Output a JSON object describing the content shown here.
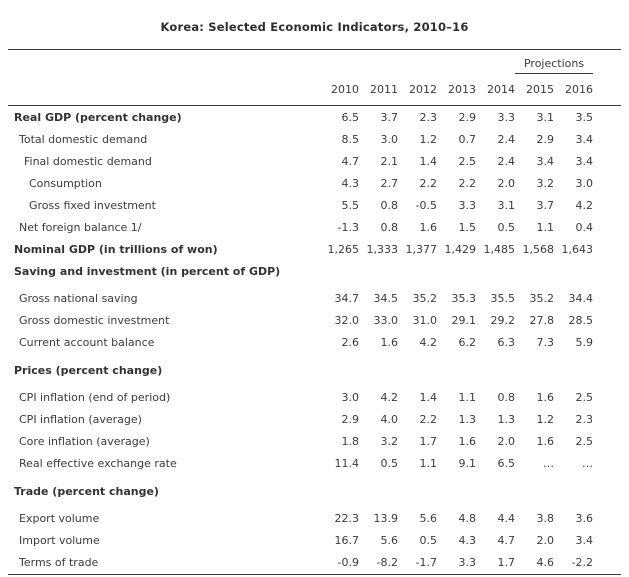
{
  "title": "Korea: Selected Economic Indicators, 2010–16",
  "table": {
    "projections_label": "Projections",
    "years": [
      "2010",
      "2011",
      "2012",
      "2013",
      "2014",
      "2015",
      "2016"
    ],
    "projection_years": [
      "2015",
      "2016"
    ],
    "rows": [
      {
        "label": "Real GDP (percent change)",
        "indent": 0,
        "bold": true,
        "gap": false,
        "values": [
          "6.5",
          "3.7",
          "2.3",
          "2.9",
          "3.3",
          "3.1",
          "3.5"
        ]
      },
      {
        "label": "Total domestic demand",
        "indent": 1,
        "bold": false,
        "gap": false,
        "values": [
          "8.5",
          "3.0",
          "1.2",
          "0.7",
          "2.4",
          "2.9",
          "3.4"
        ]
      },
      {
        "label": "Final domestic demand",
        "indent": 2,
        "bold": false,
        "gap": false,
        "values": [
          "4.7",
          "2.1",
          "1.4",
          "2.5",
          "2.4",
          "3.4",
          "3.4"
        ]
      },
      {
        "label": "Consumption",
        "indent": 3,
        "bold": false,
        "gap": false,
        "values": [
          "4.3",
          "2.7",
          "2.2",
          "2.2",
          "2.0",
          "3.2",
          "3.0"
        ]
      },
      {
        "label": "Gross fixed investment",
        "indent": 3,
        "bold": false,
        "gap": false,
        "values": [
          "5.5",
          "0.8",
          "-0.5",
          "3.3",
          "3.1",
          "3.7",
          "4.2"
        ]
      },
      {
        "label": "Net foreign balance 1/",
        "indent": 1,
        "bold": false,
        "gap": false,
        "values": [
          "-1.3",
          "0.8",
          "1.6",
          "1.5",
          "0.5",
          "1.1",
          "0.4"
        ]
      },
      {
        "label": "Nominal GDP (in trillions of won)",
        "indent": 0,
        "bold": true,
        "gap": false,
        "values": [
          "1,265",
          "1,333",
          "1,377",
          "1,429",
          "1,485",
          "1,568",
          "1,643"
        ]
      },
      {
        "label": "Saving and investment (in percent of GDP)",
        "indent": 0,
        "bold": true,
        "gap": false,
        "values": []
      },
      {
        "label": "Gross national saving",
        "indent": 1,
        "bold": false,
        "gap": true,
        "values": [
          "34.7",
          "34.5",
          "35.2",
          "35.3",
          "35.5",
          "35.2",
          "34.4"
        ]
      },
      {
        "label": "Gross domestic investment",
        "indent": 1,
        "bold": false,
        "gap": false,
        "values": [
          "32.0",
          "33.0",
          "31.0",
          "29.1",
          "29.2",
          "27.8",
          "28.5"
        ]
      },
      {
        "label": "Current account balance",
        "indent": 1,
        "bold": false,
        "gap": false,
        "values": [
          "2.6",
          "1.6",
          "4.2",
          "6.2",
          "6.3",
          "7.3",
          "5.9"
        ]
      },
      {
        "label": "Prices (percent change)",
        "indent": 0,
        "bold": true,
        "gap": true,
        "values": []
      },
      {
        "label": "CPI inflation (end of period)",
        "indent": 1,
        "bold": false,
        "gap": true,
        "values": [
          "3.0",
          "4.2",
          "1.4",
          "1.1",
          "0.8",
          "1.6",
          "2.5"
        ]
      },
      {
        "label": "CPI inflation (average)",
        "indent": 1,
        "bold": false,
        "gap": false,
        "values": [
          "2.9",
          "4.0",
          "2.2",
          "1.3",
          "1.3",
          "1.2",
          "2.3"
        ]
      },
      {
        "label": "Core inflation (average)",
        "indent": 1,
        "bold": false,
        "gap": false,
        "values": [
          "1.8",
          "3.2",
          "1.7",
          "1.6",
          "2.0",
          "1.6",
          "2.5"
        ]
      },
      {
        "label": "Real effective exchange rate",
        "indent": 1,
        "bold": false,
        "gap": false,
        "values": [
          "11.4",
          "0.5",
          "1.1",
          "9.1",
          "6.5",
          "…",
          "…"
        ]
      },
      {
        "label": "Trade (percent change)",
        "indent": 0,
        "bold": true,
        "gap": true,
        "values": []
      },
      {
        "label": "Export volume",
        "indent": 1,
        "bold": false,
        "gap": true,
        "values": [
          "22.3",
          "13.9",
          "5.6",
          "4.8",
          "4.4",
          "3.8",
          "3.6"
        ]
      },
      {
        "label": "Import volume",
        "indent": 1,
        "bold": false,
        "gap": false,
        "values": [
          "16.7",
          "5.6",
          "0.5",
          "4.3",
          "4.7",
          "2.0",
          "3.4"
        ]
      },
      {
        "label": "Terms of trade",
        "indent": 1,
        "bold": false,
        "gap": false,
        "values": [
          "-0.9",
          "-8.2",
          "-1.7",
          "3.3",
          "1.7",
          "4.6",
          "-2.2"
        ]
      }
    ]
  },
  "colors": {
    "text": "#3b3b3b",
    "rule": "#3c3c3c",
    "background": "#ffffff"
  }
}
